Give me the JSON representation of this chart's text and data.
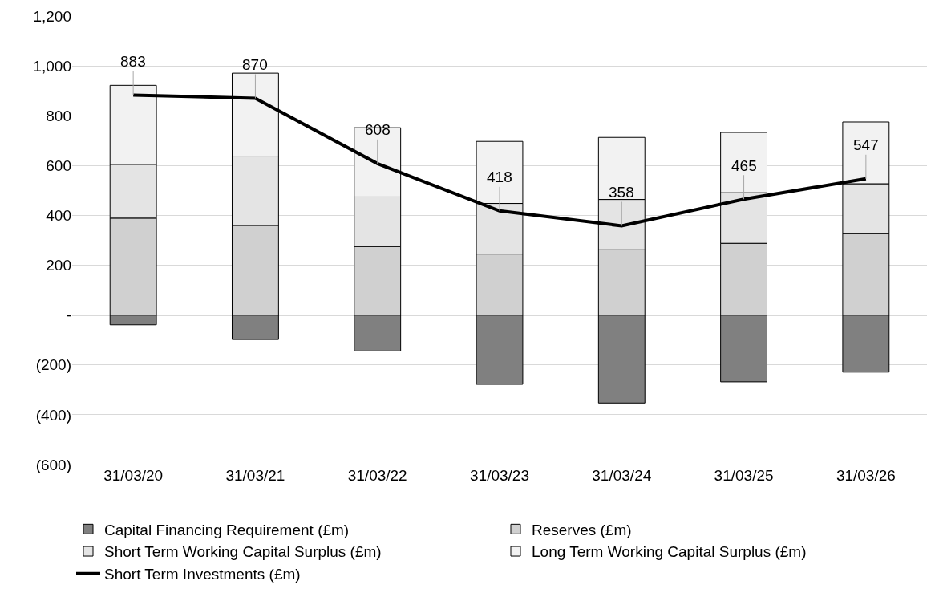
{
  "chart_data": {
    "type": "bar",
    "stacked": true,
    "categories": [
      "31/03/20",
      "31/03/21",
      "31/03/22",
      "31/03/23",
      "31/03/24",
      "31/03/25",
      "31/03/26"
    ],
    "series": [
      {
        "name": "Capital Financing Requirement (£m)",
        "color": "#808080",
        "values": [
          -39,
          -98,
          -144,
          -278,
          -353,
          -268,
          -229
        ]
      },
      {
        "name": "Reserves (£m)",
        "color": "#d0d0d0",
        "values": [
          389,
          360,
          275,
          245,
          262,
          288,
          327
        ]
      },
      {
        "name": "Short Term Working Capital Surplus (£m)",
        "color": "#e4e4e4",
        "values": [
          216,
          278,
          199,
          203,
          202,
          203,
          200
        ]
      },
      {
        "name": "Long Term Working Capital Surplus (£m)",
        "color": "#f2f2f2",
        "values": [
          317,
          333,
          278,
          249,
          249,
          242,
          248
        ]
      },
      {
        "name": "Short Term Investments (£m)",
        "type": "line",
        "color": "#000000",
        "values": [
          883,
          870,
          608,
          418,
          358,
          465,
          547
        ],
        "data_labels": true
      }
    ],
    "ylim": [
      -600,
      1200
    ],
    "yticks": [
      {
        "value": -600,
        "label": "(600)"
      },
      {
        "value": -400,
        "label": "(400)"
      },
      {
        "value": -200,
        "label": "(200)"
      },
      {
        "value": 0,
        "label": "-"
      },
      {
        "value": 200,
        "label": "200"
      },
      {
        "value": 400,
        "label": "400"
      },
      {
        "value": 600,
        "label": "600"
      },
      {
        "value": 800,
        "label": "800"
      },
      {
        "value": 1000,
        "label": "1,000"
      },
      {
        "value": 1200,
        "label": "1,200"
      }
    ],
    "grid": "y",
    "legend": "bottom"
  }
}
